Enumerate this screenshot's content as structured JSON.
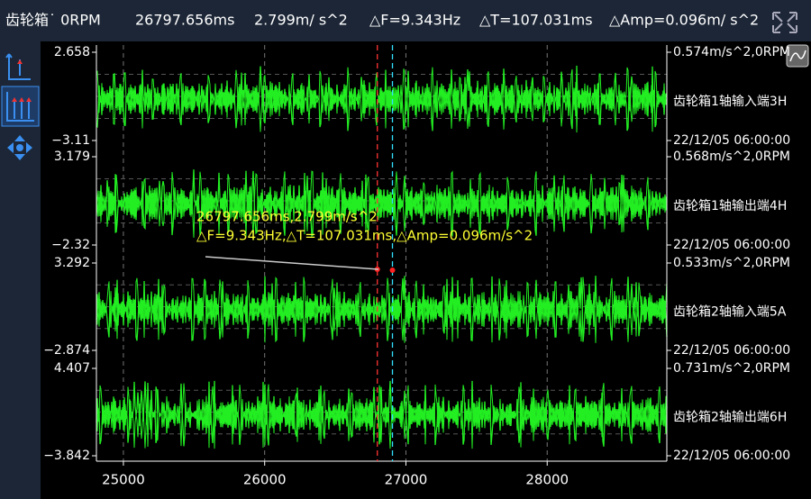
{
  "header": {
    "title": "齿轮箱˙ 0RPM",
    "time": "26797.656ms",
    "amp": "2.799m/ s^2",
    "df": "△F=9.343Hz",
    "dt": "△T=107.031ms",
    "damp": "△Amp=0.096m/ s^2"
  },
  "channels": [
    {
      "ymax": "2.658",
      "ymin": "−3.11",
      "info": "0.574m/s^2,0RPM",
      "name": "齿轮箱1轴输入端3H",
      "timestamp": "22/12/05 06:00:00"
    },
    {
      "ymax": "3.179",
      "ymin": "−2.32",
      "info": "0.568m/s^2,0RPM",
      "name": "齿轮箱1轴输出端4H",
      "timestamp": "22/12/05 06:00:00"
    },
    {
      "ymax": "3.292",
      "ymin": "−2.874",
      "info": "0.533m/s^2,0RPM",
      "name": "齿轮箱2轴输入端5A",
      "timestamp": "22/12/05 06:00:00"
    },
    {
      "ymax": "4.407",
      "ymin": "−3.842",
      "info": "0.731m/s^2,0RPM",
      "name": "齿轮箱2轴输出端6H",
      "timestamp": "22/12/05 06:00:00"
    }
  ],
  "x_axis": {
    "xlim": [
      24809,
      28847
    ],
    "ticks": [
      25000,
      26000,
      27000,
      28000
    ]
  },
  "cursors": [
    26797.656,
    26904.687
  ],
  "annotation": [
    "26797.656ms,2.799m/s^2",
    "△F=9.343Hz,△T=107.031ms,△Amp=0.096m/s^2"
  ]
}
